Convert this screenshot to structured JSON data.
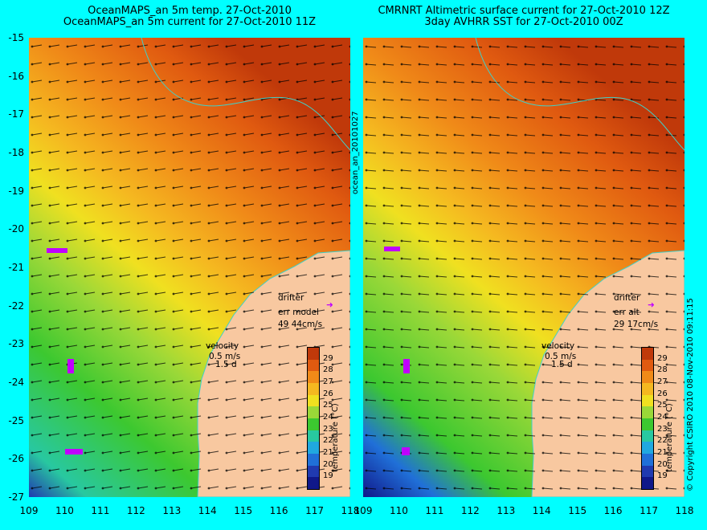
{
  "left": {
    "title_line1": "OceanMAPS_an 5m temp. 27-Oct-2010",
    "title_line2": "OceanMAPS_an 5m current for 27-Oct-2010 11Z",
    "drifter_label": "drifter",
    "err_label": "err model",
    "err_value": "49 44cm/s",
    "velocity_label": "velocity",
    "velocity_scale": "0.5 m/s",
    "velocity_time": "1.5 d",
    "side_label": "ocean_an_20101027"
  },
  "right": {
    "title_line1": "CMRNRT Altimetric surface current for 27-Oct-2010 12Z",
    "title_line2": "3day AVHRR SST for 27-Oct-2010 00Z",
    "drifter_label": "drifter",
    "err_label": "err alt",
    "err_value": "29 17cm/s",
    "velocity_label": "velocity",
    "velocity_scale": "0.5 m/s",
    "velocity_time": "1.5 d",
    "side_label": "© Copyright CSIRO 2010   08-Nov-2010 09:11:15"
  },
  "colorbar": {
    "label": "temperature (°C)",
    "ticks": [
      "29",
      "28",
      "27",
      "26",
      "25",
      "24",
      "23",
      "22",
      "21",
      "20",
      "19"
    ],
    "colors": [
      "#c0390a",
      "#e05a10",
      "#f08a18",
      "#f5b820",
      "#f0e020",
      "#9ad838",
      "#3cc830",
      "#28c8a0",
      "#20a8e0",
      "#2070d8",
      "#203ab0",
      "#10188a"
    ]
  },
  "axes": {
    "lat_ticks": [
      "-15",
      "-16",
      "-17",
      "-18",
      "-19",
      "-20",
      "-21",
      "-22",
      "-23",
      "-24",
      "-25",
      "-26",
      "-27"
    ],
    "lon_ticks": [
      "109",
      "110",
      "111",
      "112",
      "113",
      "114",
      "115",
      "116",
      "117",
      "118"
    ],
    "lat_range": [
      -27,
      -15
    ],
    "lon_range": [
      109,
      118
    ]
  },
  "colors": {
    "background": "#00ffff",
    "land": "#f8c8a0",
    "coastline": "#40d0c8",
    "drifter": "#c000ff",
    "arrows": "#000000"
  }
}
